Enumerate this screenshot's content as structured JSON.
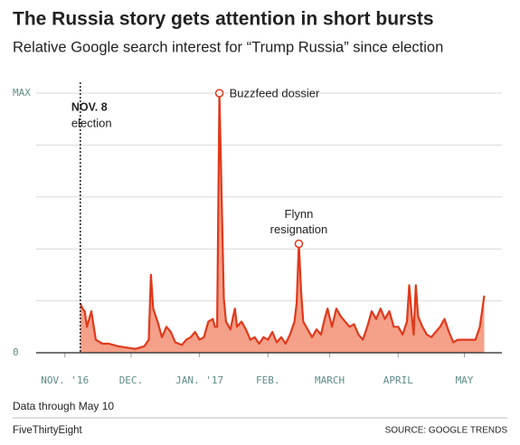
{
  "chart_data": {
    "type": "area",
    "title": "The Russia story gets attention in short bursts",
    "subtitle": "Relative Google search interest for “Trump Russia” since election",
    "note": "Data through May 10",
    "brand": "FiveThirtyEight",
    "source": "SOURCE: GOOGLE TRENDS",
    "line_color": "#e0391c",
    "fill_color": "#f5a088",
    "grid": true,
    "xlim": [
      -13,
      198
    ],
    "xticks": [
      {
        "value": 0,
        "label": "NOV. '16"
      },
      {
        "value": 30,
        "label": "DEC."
      },
      {
        "value": 61,
        "label": "JAN. '17"
      },
      {
        "value": 92,
        "label": "FEB."
      },
      {
        "value": 120,
        "label": "MARCH"
      },
      {
        "value": 151,
        "label": "APRIL"
      },
      {
        "value": 181,
        "label": "MAY"
      }
    ],
    "ylim": [
      0,
      100
    ],
    "yticks": [
      0,
      {
        "value": 100,
        "label": "MAX"
      }
    ],
    "ygrid": [
      0,
      20,
      40,
      60,
      80,
      100
    ],
    "annotations": [
      {
        "lines": [
          "NOV. 8",
          "election"
        ]
      },
      {
        "lines": [
          "Buzzfeed dossier"
        ]
      },
      {
        "lines": [
          "Flynn",
          "resignation"
        ]
      }
    ],
    "x": [
      7,
      8,
      9,
      10,
      12,
      14,
      17,
      20,
      24,
      28,
      32,
      36,
      38,
      39,
      40,
      42,
      44,
      46,
      48,
      50,
      53,
      55,
      57,
      59,
      61,
      63,
      65,
      67,
      68,
      69,
      70,
      72,
      73,
      75,
      77,
      78,
      80,
      82,
      84,
      86,
      88,
      90,
      92,
      94,
      96,
      98,
      100,
      102,
      104,
      105,
      106,
      107,
      108,
      110,
      112,
      114,
      116,
      118,
      119,
      121,
      123,
      125,
      127,
      129,
      131,
      133,
      135,
      137,
      139,
      141,
      143,
      145,
      147,
      149,
      151,
      153,
      155,
      156,
      157,
      158,
      159,
      160,
      162,
      164,
      166,
      168,
      170,
      172,
      174,
      176,
      178,
      180,
      183,
      186,
      188,
      190
    ],
    "values": [
      19,
      17,
      16,
      10,
      16,
      5,
      3.5,
      3.5,
      2.5,
      2,
      1.5,
      2.5,
      5,
      30,
      17,
      12,
      6,
      10,
      8,
      4,
      3,
      5,
      6,
      8,
      5,
      6,
      12,
      13,
      10,
      10,
      100,
      21,
      12,
      9,
      17,
      10,
      12,
      9,
      5,
      6,
      3.5,
      6,
      5,
      8,
      4,
      6,
      3.5,
      7,
      12,
      19,
      42,
      24,
      12,
      9,
      6,
      9,
      7,
      14,
      17,
      10,
      17,
      14,
      12,
      10,
      11,
      7,
      5,
      10,
      16,
      13,
      17,
      13,
      16,
      10,
      10,
      7,
      12,
      26,
      16,
      7,
      26,
      14,
      10,
      7,
      6,
      8,
      10,
      13,
      8,
      4,
      5,
      5,
      5,
      5,
      10,
      22
    ]
  }
}
